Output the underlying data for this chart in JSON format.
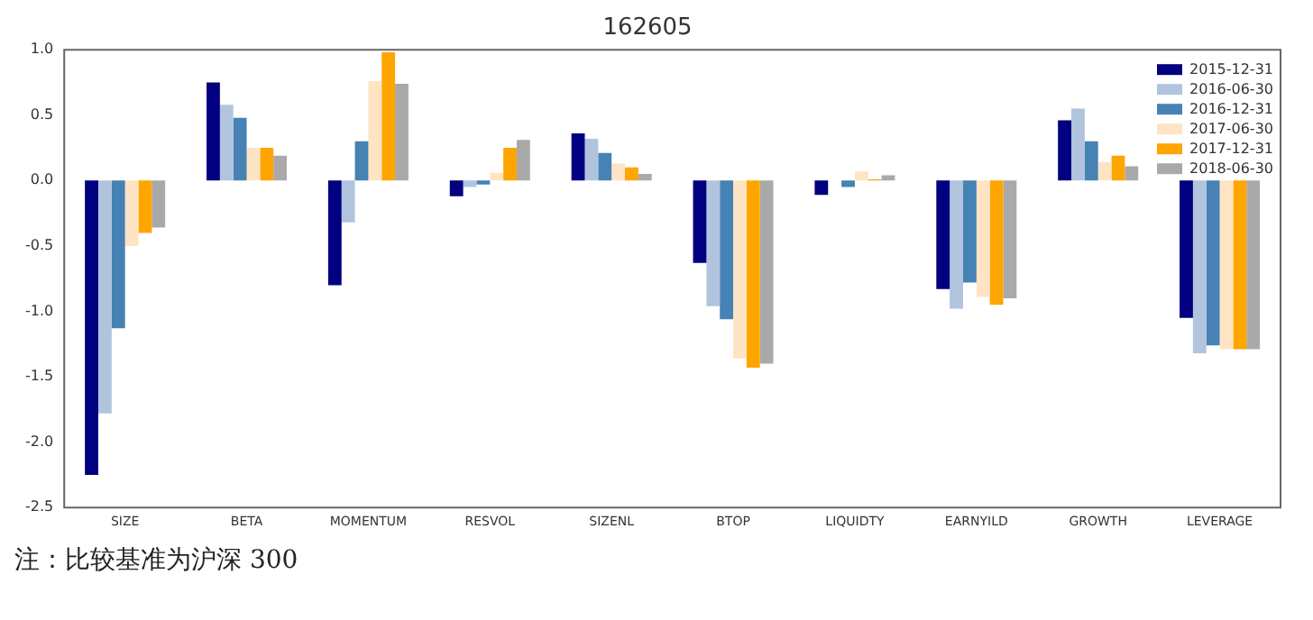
{
  "chart_data": {
    "type": "bar",
    "title": "162605",
    "categories": [
      "SIZE",
      "BETA",
      "MOMENTUM",
      "RESVOL",
      "SIZENL",
      "BTOP",
      "LIQUIDTY",
      "EARNYILD",
      "GROWTH",
      "LEVERAGE"
    ],
    "series": [
      {
        "name": "2015-12-31",
        "color": "#000080",
        "values": [
          -2.25,
          0.75,
          -0.8,
          -0.12,
          0.36,
          -0.63,
          -0.11,
          -0.83,
          0.46,
          -1.05
        ]
      },
      {
        "name": "2016-06-30",
        "color": "#b0c4de",
        "values": [
          -1.78,
          0.58,
          -0.32,
          -0.05,
          0.32,
          -0.96,
          0.0,
          -0.98,
          0.55,
          -1.32
        ]
      },
      {
        "name": "2016-12-31",
        "color": "#4682b4",
        "values": [
          -1.13,
          0.48,
          0.3,
          -0.03,
          0.21,
          -1.06,
          -0.05,
          -0.78,
          0.3,
          -1.26
        ]
      },
      {
        "name": "2017-06-30",
        "color": "#ffe4c4",
        "values": [
          -0.5,
          0.25,
          0.76,
          0.06,
          0.13,
          -1.36,
          0.07,
          -0.89,
          0.14,
          -1.29
        ]
      },
      {
        "name": "2017-12-31",
        "color": "#ffa500",
        "values": [
          -0.4,
          0.25,
          0.98,
          0.25,
          0.1,
          -1.43,
          0.01,
          -0.95,
          0.19,
          -1.29
        ]
      },
      {
        "name": "2018-06-30",
        "color": "#a9a9a9",
        "values": [
          -0.36,
          0.19,
          0.74,
          0.31,
          0.05,
          -1.4,
          0.04,
          -0.9,
          0.11,
          -1.29
        ]
      }
    ],
    "ylim": [
      -2.5,
      1.0
    ],
    "yticks": [
      {
        "value": -2.5,
        "label": "-2.5"
      },
      {
        "value": -2.0,
        "label": "-2.0"
      },
      {
        "value": -1.5,
        "label": "-1.5"
      },
      {
        "value": -1.0,
        "label": "-1.0"
      },
      {
        "value": -0.5,
        "label": "-0.5"
      },
      {
        "value": 0,
        "label": "0.0"
      },
      {
        "value": 0.5,
        "label": "0.5"
      },
      {
        "value": 1.0,
        "label": "1.0"
      }
    ],
    "grid": false,
    "legend": "top right",
    "annotations": [
      "注：比较基准为沪深 300"
    ]
  }
}
